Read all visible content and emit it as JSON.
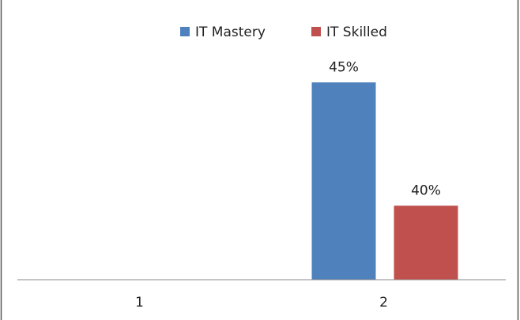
{
  "chart_data": {
    "type": "bar",
    "categories": [
      "1",
      "2"
    ],
    "series": [
      {
        "name": "IT Mastery",
        "color": "#4f81bd",
        "values": [
          null,
          45
        ],
        "value_labels": [
          null,
          "45%"
        ]
      },
      {
        "name": "IT Skilled",
        "color": "#c0504d",
        "values": [
          null,
          40
        ],
        "value_labels": [
          null,
          "40%"
        ]
      }
    ],
    "ylim": [
      37,
      47.7
    ],
    "legend": "top"
  }
}
